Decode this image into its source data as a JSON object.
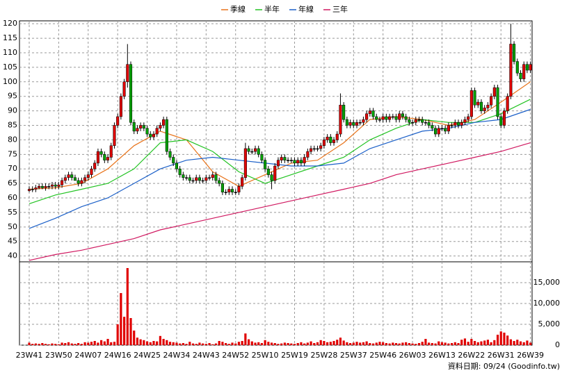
{
  "chart_data": {
    "type": "candlestick",
    "series": [
      {
        "name": "季線",
        "color": "#e8731a",
        "values": [
          63,
          63.5,
          65,
          70,
          78,
          83,
          80,
          69,
          64,
          68,
          72,
          73,
          79,
          87,
          88,
          87,
          85,
          87,
          93,
          100
        ]
      },
      {
        "name": "半年",
        "color": "#22c322",
        "values": [
          58,
          61,
          63,
          65,
          70,
          79,
          80,
          76,
          69,
          65,
          68,
          71,
          74,
          80,
          84,
          87,
          86,
          86,
          89,
          94
        ]
      },
      {
        "name": "年線",
        "color": "#1a5fc8",
        "values": [
          49.5,
          53,
          57,
          60,
          65,
          70,
          73,
          74,
          73,
          72,
          71,
          71,
          72,
          77,
          80,
          83,
          84,
          86,
          87,
          90.5
        ]
      },
      {
        "name": "三年",
        "color": "#d01860",
        "values": [
          38.5,
          40.5,
          42,
          44,
          46,
          49,
          51,
          53,
          55,
          57,
          59,
          61,
          63,
          65,
          68,
          70,
          72,
          74,
          76,
          79
        ]
      }
    ],
    "x": [
      0,
      8,
      16,
      24,
      32,
      40,
      48,
      56,
      64,
      72,
      80,
      88,
      96,
      104,
      112,
      120,
      128,
      136,
      144,
      153
    ],
    "categories": [
      "23W41",
      null,
      null,
      null,
      null,
      null,
      null,
      null,
      null,
      "23W50",
      null,
      null,
      null,
      null,
      null,
      null,
      null,
      null,
      "24W07",
      null,
      null,
      null,
      null,
      null,
      null,
      null,
      null,
      "24W16",
      null,
      null,
      null,
      null,
      null,
      null,
      null,
      null,
      "24W25",
      null,
      null,
      null,
      null,
      null,
      null,
      null,
      null,
      "24W34",
      null,
      null,
      null,
      null,
      null,
      null,
      null,
      null,
      "24W43",
      null,
      null,
      null,
      null,
      null,
      null,
      null,
      null,
      "24W52",
      null,
      null,
      null,
      null,
      null,
      null,
      null,
      null,
      "25W10",
      null,
      null,
      null,
      null,
      null,
      null,
      null,
      null,
      "25W19",
      null,
      null,
      null,
      null,
      null,
      null,
      null,
      null,
      "25W28",
      null,
      null,
      null,
      null,
      null,
      null,
      null,
      null,
      "25W37",
      null,
      null,
      null,
      null,
      null,
      null,
      null,
      null,
      "25W46",
      null,
      null,
      null,
      null,
      null,
      null,
      null,
      null,
      "26W03",
      null,
      null,
      null,
      null,
      null,
      null,
      null,
      null,
      "26W13",
      null,
      null,
      null,
      null,
      null,
      null,
      null,
      null,
      "26W22",
      null,
      null,
      null,
      null,
      null,
      null,
      null,
      null,
      "26W31",
      null,
      null,
      null,
      null,
      null,
      null,
      null,
      null,
      "26W39"
    ],
    "open": [
      62.5,
      63,
      63,
      63.5,
      64,
      63.5,
      64,
      64,
      64.5,
      64,
      64.5,
      66,
      67,
      68,
      67,
      66,
      65,
      66,
      67,
      68,
      70,
      72,
      76,
      75,
      73,
      74,
      78,
      85,
      88,
      95,
      100,
      106,
      86,
      83,
      84,
      85,
      84,
      82,
      81,
      82,
      84,
      85,
      87,
      76,
      74,
      72,
      70,
      68,
      67,
      67,
      66,
      66,
      67,
      66,
      66,
      67,
      67,
      68,
      66,
      65,
      62,
      62,
      63,
      62,
      62,
      64,
      67,
      77,
      76,
      76,
      77,
      75,
      73,
      70,
      68,
      66,
      71,
      73,
      74,
      73,
      73,
      73,
      72,
      73,
      72,
      74,
      76,
      77,
      77,
      77,
      78,
      80,
      81,
      79,
      80,
      82,
      92,
      87,
      85,
      86,
      85,
      86,
      86,
      87,
      89,
      90,
      88,
      87,
      87,
      88,
      87,
      88,
      88,
      87,
      89,
      88,
      87,
      86,
      86,
      87,
      87,
      86,
      86,
      85,
      84,
      82,
      84,
      84,
      83,
      85,
      85,
      86,
      85,
      86,
      87,
      88,
      97,
      92,
      93,
      90,
      91,
      92,
      95,
      98,
      88,
      85,
      90,
      95,
      113,
      107,
      103,
      101,
      106,
      104
    ],
    "high": [
      64,
      64,
      64.5,
      65,
      65,
      65,
      65,
      65.5,
      65.5,
      65.5,
      67,
      68,
      69,
      69,
      68,
      67,
      67,
      68,
      69,
      71,
      73,
      77,
      77,
      76,
      75,
      79,
      86,
      89,
      96,
      101,
      113,
      107,
      87,
      85,
      86,
      86,
      85,
      83,
      83,
      85,
      86,
      88,
      88,
      77,
      75,
      73,
      71,
      69,
      68,
      68,
      67,
      68,
      68,
      67,
      68,
      68,
      69,
      69,
      67,
      66,
      63,
      64,
      64,
      63,
      65,
      68,
      79,
      78,
      77,
      78,
      78,
      76,
      74,
      71,
      69,
      72,
      74,
      75,
      75,
      74,
      74,
      74,
      74,
      74,
      75,
      77,
      78,
      78,
      78,
      79,
      81,
      82,
      82,
      81,
      83,
      96,
      93,
      88,
      87,
      87,
      87,
      87,
      88,
      90,
      91,
      91,
      89,
      88,
      89,
      89,
      89,
      89,
      89,
      90,
      90,
      89,
      88,
      87,
      88,
      88,
      88,
      87,
      87,
      86,
      85,
      85,
      85,
      85,
      86,
      86,
      87,
      87,
      87,
      88,
      89,
      98,
      98,
      94,
      94,
      92,
      93,
      96,
      99,
      99,
      89,
      91,
      96,
      120,
      114,
      108,
      104,
      107,
      107,
      107
    ],
    "low": [
      62,
      62,
      62,
      63,
      63,
      62.5,
      63,
      63,
      63,
      63,
      63.5,
      65,
      66,
      66,
      66,
      64,
      64,
      65,
      66,
      67,
      69,
      71,
      74,
      72,
      72,
      73,
      77,
      84,
      87,
      94,
      98,
      85,
      82,
      82,
      83,
      83,
      81,
      80,
      80,
      81,
      83,
      84,
      75,
      73,
      71,
      69,
      67,
      66,
      66,
      65,
      65,
      65,
      65,
      65,
      65,
      66,
      66,
      65,
      64,
      61,
      61,
      61,
      61,
      61,
      61,
      63,
      66,
      75,
      75,
      75,
      74,
      72,
      69,
      67,
      63,
      65,
      70,
      72,
      72,
      72,
      72,
      71,
      71,
      71,
      71,
      73,
      75,
      76,
      76,
      76,
      77,
      79,
      78,
      78,
      79,
      81,
      86,
      84,
      84,
      84,
      84,
      85,
      85,
      86,
      88,
      87,
      86,
      86,
      86,
      86,
      86,
      87,
      86,
      86,
      87,
      86,
      85,
      85,
      85,
      86,
      85,
      85,
      84,
      83,
      81,
      81,
      83,
      82,
      82,
      84,
      84,
      84,
      84,
      85,
      86,
      87,
      91,
      91,
      89,
      89,
      90,
      91,
      94,
      87,
      84,
      84,
      89,
      94,
      106,
      102,
      100,
      100,
      103,
      103
    ],
    "close": [
      63,
      63,
      63.5,
      64,
      63.5,
      64,
      64,
      64.5,
      64,
      64.5,
      66,
      67,
      68,
      67,
      66,
      65,
      66,
      67,
      68,
      70,
      72,
      76,
      75,
      73,
      74,
      78,
      85,
      88,
      95,
      100,
      106,
      86,
      83,
      84,
      85,
      84,
      82,
      81,
      82,
      84,
      85,
      87,
      76,
      74,
      72,
      70,
      68,
      67,
      67,
      66,
      66,
      67,
      66,
      66,
      67,
      67,
      68,
      66,
      65,
      62,
      62,
      63,
      62,
      62,
      64,
      67,
      77,
      76,
      76,
      77,
      75,
      73,
      70,
      68,
      66,
      71,
      73,
      74,
      73,
      73,
      73,
      72,
      73,
      72,
      74,
      76,
      77,
      77,
      77,
      78,
      80,
      81,
      79,
      80,
      82,
      92,
      87,
      85,
      86,
      85,
      86,
      86,
      87,
      89,
      90,
      88,
      87,
      87,
      88,
      87,
      88,
      88,
      87,
      89,
      88,
      87,
      86,
      86,
      87,
      87,
      86,
      86,
      85,
      84,
      82,
      84,
      84,
      83,
      85,
      85,
      86,
      85,
      86,
      87,
      88,
      97,
      92,
      93,
      90,
      91,
      92,
      95,
      98,
      88,
      85,
      90,
      95,
      113,
      107,
      103,
      101,
      106,
      104,
      106
    ],
    "volume": [
      600,
      300,
      400,
      300,
      500,
      300,
      200,
      400,
      300,
      200,
      600,
      500,
      700,
      400,
      300,
      500,
      300,
      700,
      600,
      800,
      1000,
      600,
      1200,
      900,
      1500,
      700,
      800,
      5000,
      12500,
      6800,
      18500,
      6500,
      3500,
      1800,
      1400,
      1200,
      900,
      700,
      1000,
      900,
      2200,
      1500,
      1200,
      800,
      700,
      600,
      400,
      500,
      300,
      800,
      400,
      300,
      600,
      400,
      300,
      500,
      200,
      400,
      1000,
      800,
      500,
      300,
      600,
      400,
      800,
      1000,
      2800,
      1400,
      900,
      600,
      700,
      500,
      1200,
      800,
      600,
      500,
      300,
      400,
      600,
      500,
      400,
      300,
      500,
      700,
      400,
      600,
      900,
      500,
      700,
      1200,
      1000,
      700,
      800,
      1000,
      1300,
      1800,
      1100,
      700,
      500,
      600,
      800,
      600,
      700,
      900,
      500,
      400,
      600,
      800,
      700,
      500,
      400,
      600,
      500,
      400,
      600,
      700,
      500,
      400,
      300,
      500,
      800,
      1500,
      600,
      500,
      400,
      900,
      700,
      600,
      400,
      500,
      700,
      500,
      1300,
      1600,
      800,
      1500,
      1000,
      700,
      900,
      1100,
      1300,
      700,
      1200,
      2500,
      3300,
      3000,
      2300,
      1400,
      1000,
      1300,
      900,
      700,
      1100,
      600
    ],
    "up_color": "#e00000",
    "down_color": "#00a000",
    "ylim": [
      38,
      121
    ],
    "yticks": [
      40,
      45,
      50,
      55,
      60,
      65,
      70,
      75,
      80,
      85,
      90,
      95,
      100,
      105,
      110,
      115,
      120
    ],
    "y2lim": [
      0,
      20000
    ],
    "y2ticks": [
      0,
      {
        "value": 5000,
        "label": "5,000"
      },
      {
        "value": 10000,
        "label": "10,000"
      },
      {
        "value": 15000,
        "label": "15,000"
      }
    ],
    "grid": true,
    "footer": "資料日期: 09/24 (Goodinfo.tw)"
  }
}
